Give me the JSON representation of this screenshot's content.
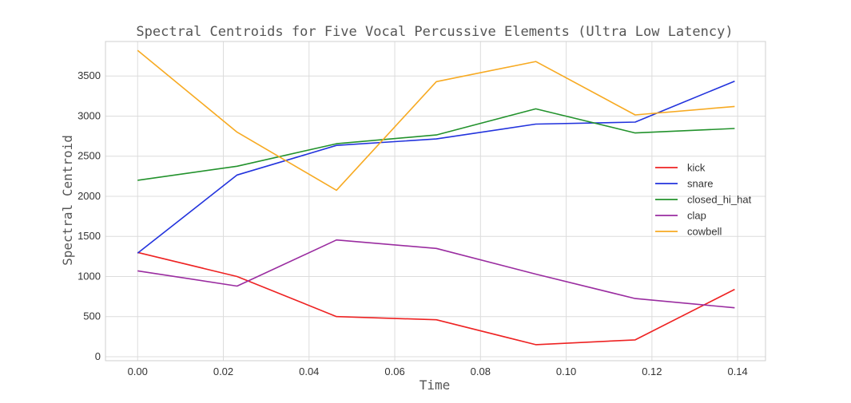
{
  "chart_data": {
    "type": "line",
    "title": "Spectral Centroids for Five Vocal Percussive Elements (Ultra Low Latency)",
    "xlabel": "Time",
    "ylabel": "Spectral Centroid",
    "xlim": [
      -0.0075,
      0.1465
    ],
    "ylim": [
      -50,
      3930
    ],
    "x_ticks": [
      0.0,
      0.02,
      0.04,
      0.06,
      0.08,
      0.1,
      0.12,
      0.14
    ],
    "x_tick_labels": [
      "0.00",
      "0.02",
      "0.04",
      "0.06",
      "0.08",
      "0.10",
      "0.12",
      "0.14"
    ],
    "y_ticks": [
      0,
      500,
      1000,
      1500,
      2000,
      2500,
      3000,
      3500
    ],
    "y_tick_labels": [
      "0",
      "500",
      "1000",
      "1500",
      "2000",
      "2500",
      "3000",
      "3500"
    ],
    "grid": true,
    "legend_position": "right",
    "x": [
      0.0,
      0.0232,
      0.0464,
      0.0697,
      0.0929,
      0.1161,
      0.1393
    ],
    "series": [
      {
        "name": "kick",
        "color": "#ee2222",
        "values": [
          1300,
          1000,
          500,
          460,
          150,
          210,
          840
        ]
      },
      {
        "name": "snare",
        "color": "#2233dd",
        "values": [
          1290,
          2265,
          2635,
          2715,
          2900,
          2925,
          3435
        ]
      },
      {
        "name": "closed_hi_hat",
        "color": "#22922c",
        "values": [
          2200,
          2375,
          2655,
          2765,
          3090,
          2790,
          2845
        ]
      },
      {
        "name": "clap",
        "color": "#9a2ca0",
        "values": [
          1070,
          880,
          1455,
          1350,
          1030,
          725,
          610
        ]
      },
      {
        "name": "cowbell",
        "color": "#f7aa22",
        "values": [
          3820,
          2800,
          2075,
          3430,
          3680,
          3015,
          3120
        ]
      }
    ]
  }
}
